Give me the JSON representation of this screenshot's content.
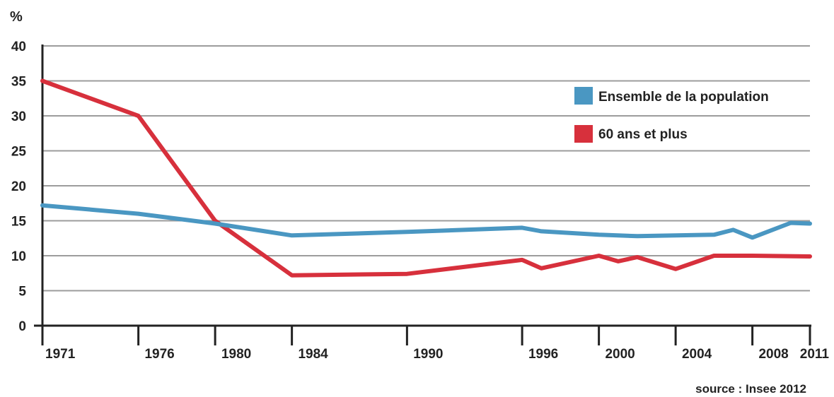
{
  "chart_data": {
    "type": "line",
    "ylabel": "%",
    "ylim": [
      0,
      40
    ],
    "yticks": [
      0,
      5,
      10,
      15,
      20,
      25,
      30,
      35,
      40
    ],
    "xlim": [
      1971,
      2011
    ],
    "xticks": [
      1971,
      1976,
      1980,
      1984,
      1990,
      1996,
      2000,
      2004,
      2008,
      2011
    ],
    "grid": true,
    "legend_position": "top-right",
    "series": [
      {
        "name": "Ensemble de la population",
        "color": "#4a97c2",
        "x": [
          1971,
          1976,
          1980,
          1984,
          1990,
          1996,
          1997,
          2000,
          2002,
          2006,
          2007,
          2008,
          2010,
          2011
        ],
        "y": [
          17.2,
          16.0,
          14.6,
          12.9,
          13.4,
          14.0,
          13.5,
          13.0,
          12.8,
          13.0,
          13.7,
          12.6,
          14.7,
          14.6
        ]
      },
      {
        "name": "60 ans et plus",
        "color": "#d7303c",
        "x": [
          1971,
          1976,
          1980,
          1984,
          1990,
          1996,
          1997,
          2000,
          2001,
          2002,
          2004,
          2006,
          2008,
          2011
        ],
        "y": [
          35.0,
          30.0,
          15.0,
          7.2,
          7.4,
          9.4,
          8.2,
          10.0,
          9.2,
          9.8,
          8.1,
          10.0,
          10.0,
          9.9
        ]
      }
    ],
    "source": "source : Insee 2012"
  }
}
